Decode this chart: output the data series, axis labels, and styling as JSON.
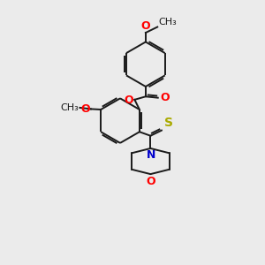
{
  "background_color": "#ebebeb",
  "bond_color": "#1a1a1a",
  "atom_colors": {
    "O": "#ff0000",
    "N": "#0000cc",
    "S": "#aaaa00",
    "C": "#1a1a1a"
  },
  "figsize": [
    3.0,
    3.0
  ],
  "dpi": 100,
  "lw": 1.4,
  "fs": 9
}
